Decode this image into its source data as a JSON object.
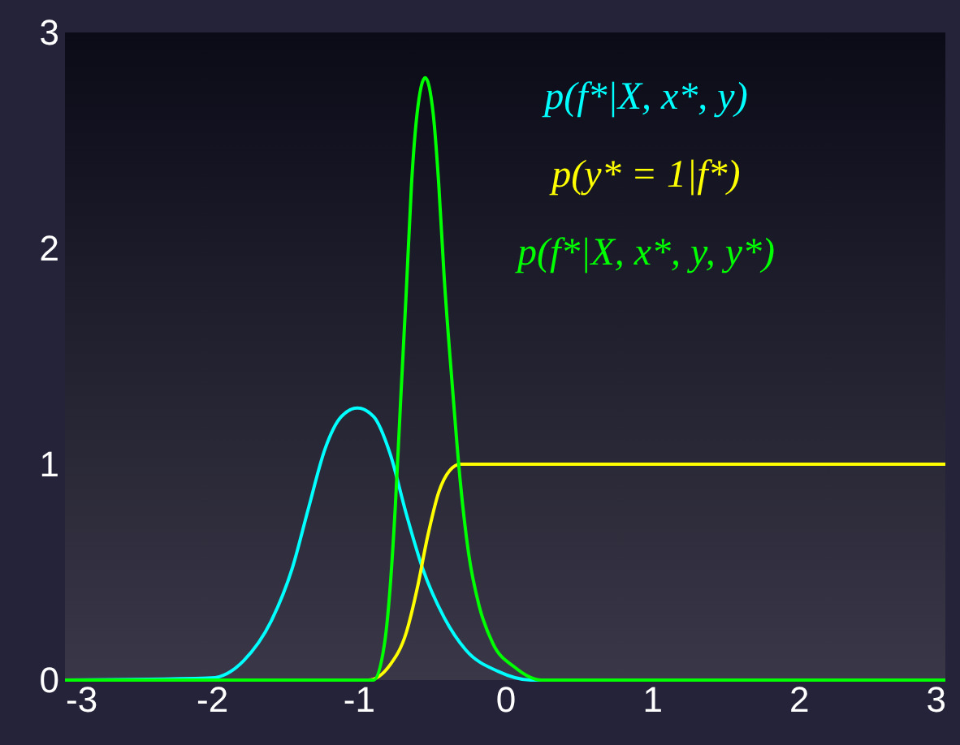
{
  "chart_data": {
    "type": "line",
    "series": [
      {
        "name": "p(f*|X, x*, y)",
        "color": "#00ffff",
        "x": [
          -3,
          -2.003,
          -1.782,
          -1.597,
          -1.45,
          -1.339,
          -1.228,
          -1.117,
          -1.007,
          -0.896,
          -0.785,
          -0.674,
          -0.564,
          -0.416,
          -0.269,
          -0.047,
          0.175,
          3
        ],
        "values": [
          0,
          0.01,
          0.09,
          0.27,
          0.52,
          0.8,
          1.07,
          1.22,
          1.26,
          1.22,
          1.05,
          0.77,
          0.52,
          0.29,
          0.14,
          0.04,
          0,
          0
        ]
      },
      {
        "name": "p(y* = 1|f*)",
        "color": "#ffff00",
        "x": [
          -3,
          -0.933,
          -0.785,
          -0.674,
          -0.601,
          -0.527,
          -0.453,
          -0.379,
          -0.306,
          3
        ],
        "values": [
          0,
          0,
          0.07,
          0.22,
          0.42,
          0.67,
          0.87,
          0.97,
          1,
          1
        ]
      },
      {
        "name": "p(f*|X, x*, y, y*)",
        "color": "#00ff00",
        "x": [
          -3,
          -0.896,
          -0.822,
          -0.785,
          -0.749,
          -0.712,
          -0.674,
          -0.638,
          -0.601,
          -0.545,
          -0.49,
          -0.453,
          -0.416,
          -0.361,
          -0.306,
          -0.25,
          -0.176,
          -0.084,
          0.064,
          0.248,
          3
        ],
        "values": [
          0,
          0,
          0.17,
          0.42,
          0.8,
          1.3,
          1.8,
          2.3,
          2.62,
          2.79,
          2.62,
          2.3,
          1.87,
          1.37,
          0.92,
          0.59,
          0.34,
          0.17,
          0.06,
          0,
          0
        ]
      }
    ],
    "xlim": [
      -3,
      3
    ],
    "xticks": [
      -3,
      -2,
      -1,
      0,
      1,
      2,
      3
    ],
    "ylim": [
      0,
      3
    ],
    "yticks": [
      0,
      1,
      2,
      3
    ],
    "grid": false,
    "legend": "top right",
    "marker": "none",
    "line_style": "solid"
  }
}
